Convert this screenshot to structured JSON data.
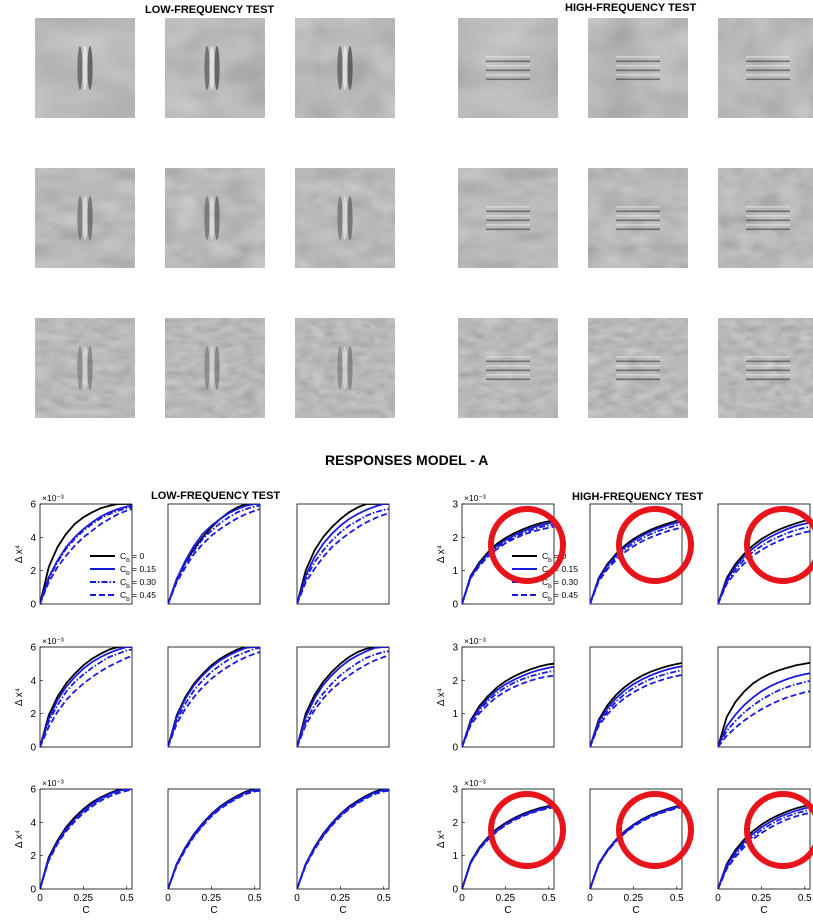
{
  "figure": {
    "stimuli": {
      "low_title": "LOW-FREQUENCY TEST",
      "high_title": "HIGH-FREQUENCY TEST",
      "rows": 3,
      "cols_per_group": 3
    },
    "responses_title": "RESPONSES  MODEL - A",
    "low_title": "LOW-FREQUENCY TEST",
    "high_title": "HIGH-FREQUENCY TEST",
    "circle_color": "#e8141c",
    "line_colors": {
      "Cb0": "#000000",
      "other": "#1a1adc"
    }
  },
  "chart_data": [
    {
      "type": "line",
      "group": "low-frequency",
      "grid": "3x3 panels",
      "xlabel": "C",
      "ylabel": "Δ x⁴",
      "exponent_label": "×10⁻³",
      "xticks": [
        "0",
        "0.25",
        "0.5"
      ],
      "yticks": [
        "0",
        "2",
        "4",
        "6"
      ],
      "xlim": [
        0,
        0.53
      ],
      "ylim": [
        0,
        6
      ],
      "legend": [
        "C_b = 0",
        "C_b = 0.15",
        "C_b = 0.30",
        "C_b = 0.45"
      ],
      "legend_display": [
        {
          "main": "C",
          "sub": "b",
          "rest": " = 0"
        },
        {
          "main": "C",
          "sub": "b",
          "rest": " = 0.15"
        },
        {
          "main": "C",
          "sub": "b",
          "rest": " = 0.30"
        },
        {
          "main": "C",
          "sub": "b",
          "rest": " = 0.45"
        }
      ],
      "x": [
        0,
        0.05,
        0.1,
        0.15,
        0.2,
        0.25,
        0.3,
        0.35,
        0.4,
        0.45,
        0.5,
        0.53
      ],
      "panels": [
        [
          [
            0,
            2.2,
            3.4,
            4.2,
            4.8,
            5.2,
            5.5,
            5.75,
            5.9,
            6.0,
            6.0,
            6.0
          ],
          [
            0,
            1.6,
            2.6,
            3.4,
            4.0,
            4.5,
            4.9,
            5.25,
            5.5,
            5.7,
            5.85,
            5.9
          ],
          [
            0,
            1.5,
            2.5,
            3.3,
            3.9,
            4.4,
            4.8,
            5.15,
            5.4,
            5.6,
            5.75,
            5.8
          ],
          [
            0,
            1.3,
            2.2,
            2.9,
            3.5,
            4.0,
            4.4,
            4.8,
            5.1,
            5.4,
            5.6,
            5.7
          ]
        ],
        [
          [
            0,
            1.5,
            2.5,
            3.3,
            4.0,
            4.6,
            5.1,
            5.5,
            5.8,
            6.0,
            6.0,
            6.0
          ],
          [
            0,
            1.5,
            2.6,
            3.5,
            4.2,
            4.7,
            5.1,
            5.45,
            5.7,
            5.9,
            6.0,
            6.0
          ],
          [
            0,
            1.4,
            2.4,
            3.2,
            3.9,
            4.4,
            4.85,
            5.2,
            5.5,
            5.7,
            5.85,
            5.9
          ],
          [
            0,
            1.3,
            2.2,
            3.0,
            3.6,
            4.1,
            4.5,
            4.85,
            5.15,
            5.4,
            5.6,
            5.7
          ]
        ],
        [
          [
            0,
            2.0,
            3.2,
            4.0,
            4.6,
            5.1,
            5.5,
            5.8,
            6.0,
            6.0,
            6.0,
            6.0
          ],
          [
            0,
            1.7,
            2.8,
            3.6,
            4.2,
            4.7,
            5.1,
            5.4,
            5.65,
            5.85,
            6.0,
            6.0
          ],
          [
            0,
            1.5,
            2.5,
            3.2,
            3.8,
            4.3,
            4.7,
            5.0,
            5.3,
            5.5,
            5.65,
            5.7
          ],
          [
            0,
            1.3,
            2.1,
            2.8,
            3.4,
            3.85,
            4.25,
            4.6,
            4.9,
            5.15,
            5.35,
            5.45
          ]
        ],
        [
          [
            0,
            1.9,
            3.0,
            3.8,
            4.4,
            4.9,
            5.3,
            5.6,
            5.85,
            6.0,
            6.0,
            6.0
          ],
          [
            0,
            1.7,
            2.8,
            3.6,
            4.2,
            4.7,
            5.1,
            5.4,
            5.65,
            5.85,
            6.0,
            6.0
          ],
          [
            0,
            1.5,
            2.5,
            3.3,
            3.9,
            4.35,
            4.75,
            5.1,
            5.4,
            5.6,
            5.8,
            5.85
          ],
          [
            0,
            1.2,
            2.1,
            2.8,
            3.35,
            3.8,
            4.2,
            4.55,
            4.85,
            5.1,
            5.35,
            5.45
          ]
        ],
        [
          [
            0,
            1.9,
            3.0,
            3.8,
            4.4,
            4.9,
            5.3,
            5.6,
            5.85,
            6.0,
            6.0,
            6.0
          ],
          [
            0,
            1.8,
            2.9,
            3.7,
            4.3,
            4.8,
            5.2,
            5.5,
            5.75,
            5.95,
            6.0,
            6.0
          ],
          [
            0,
            1.6,
            2.6,
            3.4,
            4.0,
            4.5,
            4.9,
            5.25,
            5.5,
            5.7,
            5.9,
            5.95
          ],
          [
            0,
            1.4,
            2.3,
            3.0,
            3.6,
            4.1,
            4.5,
            4.85,
            5.15,
            5.4,
            5.6,
            5.7
          ]
        ],
        [
          [
            0,
            2.0,
            3.1,
            3.9,
            4.5,
            5.0,
            5.4,
            5.7,
            5.9,
            6.0,
            6.0,
            6.0
          ],
          [
            0,
            1.8,
            2.9,
            3.7,
            4.3,
            4.8,
            5.2,
            5.5,
            5.75,
            5.95,
            6.0,
            6.0
          ],
          [
            0,
            1.5,
            2.5,
            3.2,
            3.8,
            4.3,
            4.7,
            5.05,
            5.35,
            5.55,
            5.7,
            5.75
          ],
          [
            0,
            1.3,
            2.2,
            2.9,
            3.45,
            3.9,
            4.3,
            4.65,
            4.95,
            5.2,
            5.4,
            5.5
          ]
        ],
        [
          [
            0,
            1.9,
            2.9,
            3.7,
            4.3,
            4.8,
            5.2,
            5.5,
            5.75,
            5.95,
            6.0,
            6.0
          ],
          [
            0,
            1.8,
            2.8,
            3.6,
            4.2,
            4.7,
            5.1,
            5.45,
            5.7,
            5.9,
            6.0,
            6.0
          ],
          [
            0,
            1.8,
            2.8,
            3.55,
            4.15,
            4.65,
            5.05,
            5.4,
            5.65,
            5.85,
            6.0,
            6.0
          ],
          [
            0,
            1.7,
            2.7,
            3.45,
            4.05,
            4.55,
            4.95,
            5.3,
            5.55,
            5.75,
            5.9,
            5.95
          ]
        ],
        [
          [
            0,
            1.5,
            2.5,
            3.3,
            3.95,
            4.5,
            4.95,
            5.3,
            5.6,
            5.85,
            6.0,
            6.0
          ],
          [
            0,
            1.5,
            2.45,
            3.25,
            3.9,
            4.45,
            4.9,
            5.25,
            5.55,
            5.8,
            5.95,
            6.0
          ],
          [
            0,
            1.45,
            2.4,
            3.2,
            3.85,
            4.4,
            4.85,
            5.2,
            5.5,
            5.75,
            5.9,
            5.95
          ],
          [
            0,
            1.4,
            2.35,
            3.15,
            3.8,
            4.35,
            4.8,
            5.15,
            5.45,
            5.7,
            5.85,
            5.9
          ]
        ],
        [
          [
            0,
            1.5,
            2.5,
            3.3,
            3.95,
            4.5,
            4.95,
            5.3,
            5.6,
            5.85,
            6.0,
            6.0
          ],
          [
            0,
            1.5,
            2.45,
            3.25,
            3.9,
            4.45,
            4.9,
            5.25,
            5.55,
            5.8,
            5.95,
            6.0
          ],
          [
            0,
            1.45,
            2.4,
            3.2,
            3.85,
            4.4,
            4.85,
            5.2,
            5.5,
            5.75,
            5.9,
            5.95
          ],
          [
            0,
            1.4,
            2.35,
            3.15,
            3.8,
            4.35,
            4.8,
            5.15,
            5.45,
            5.7,
            5.85,
            5.9
          ]
        ]
      ]
    },
    {
      "type": "line",
      "group": "high-frequency",
      "grid": "3x3 panels",
      "xlabel": "C",
      "ylabel": "Δ x⁴",
      "exponent_label": "×10⁻³",
      "xticks": [
        "0",
        "0.25",
        "0.5"
      ],
      "yticks": [
        "0",
        "1",
        "2",
        "3"
      ],
      "xlim": [
        0,
        0.53
      ],
      "ylim": [
        0,
        3
      ],
      "legend": [
        "C_b = 0",
        "C_b = 0.15",
        "C_b = 0.30",
        "C_b = 0.45"
      ],
      "legend_display": [
        {
          "main": "C",
          "sub": "b",
          "rest": " = 0"
        },
        {
          "main": "C",
          "sub": "b",
          "rest": " = 0.15"
        },
        {
          "main": "C",
          "sub": "b",
          "rest": " = 0.30"
        },
        {
          "main": "C",
          "sub": "b",
          "rest": " = 0.45"
        }
      ],
      "circled_panels": [
        0,
        1,
        2,
        6,
        7,
        8
      ],
      "x": [
        0,
        0.05,
        0.1,
        0.15,
        0.2,
        0.25,
        0.3,
        0.35,
        0.4,
        0.45,
        0.5,
        0.53
      ],
      "panels": [
        [
          [
            0,
            0.85,
            1.25,
            1.55,
            1.8,
            1.98,
            2.12,
            2.24,
            2.34,
            2.42,
            2.48,
            2.5
          ],
          [
            0,
            0.82,
            1.2,
            1.5,
            1.74,
            1.92,
            2.06,
            2.18,
            2.28,
            2.36,
            2.42,
            2.45
          ],
          [
            0,
            0.8,
            1.17,
            1.46,
            1.69,
            1.87,
            2.01,
            2.12,
            2.22,
            2.3,
            2.36,
            2.38
          ],
          [
            0,
            0.78,
            1.14,
            1.42,
            1.64,
            1.82,
            1.96,
            2.07,
            2.16,
            2.23,
            2.29,
            2.32
          ]
        ],
        [
          [
            0,
            0.78,
            1.2,
            1.5,
            1.75,
            1.95,
            2.1,
            2.23,
            2.33,
            2.42,
            2.5,
            2.53
          ],
          [
            0,
            0.75,
            1.15,
            1.45,
            1.7,
            1.9,
            2.05,
            2.18,
            2.28,
            2.37,
            2.44,
            2.47
          ],
          [
            0,
            0.72,
            1.1,
            1.39,
            1.63,
            1.82,
            1.97,
            2.1,
            2.2,
            2.29,
            2.36,
            2.39
          ],
          [
            0,
            0.68,
            1.04,
            1.32,
            1.55,
            1.73,
            1.88,
            2.0,
            2.1,
            2.19,
            2.26,
            2.29
          ]
        ],
        [
          [
            0,
            0.78,
            1.2,
            1.5,
            1.75,
            1.95,
            2.1,
            2.23,
            2.33,
            2.42,
            2.5,
            2.53
          ],
          [
            0,
            0.72,
            1.12,
            1.42,
            1.66,
            1.86,
            2.01,
            2.14,
            2.25,
            2.34,
            2.41,
            2.44
          ],
          [
            0,
            0.66,
            1.03,
            1.32,
            1.56,
            1.74,
            1.9,
            2.02,
            2.13,
            2.22,
            2.29,
            2.32
          ],
          [
            0,
            0.6,
            0.94,
            1.21,
            1.44,
            1.62,
            1.77,
            1.89,
            2.0,
            2.08,
            2.15,
            2.18
          ]
        ],
        [
          [
            0,
            0.8,
            1.23,
            1.53,
            1.78,
            1.97,
            2.12,
            2.24,
            2.34,
            2.42,
            2.48,
            2.5
          ],
          [
            0,
            0.76,
            1.16,
            1.46,
            1.7,
            1.88,
            2.02,
            2.14,
            2.24,
            2.32,
            2.38,
            2.41
          ],
          [
            0,
            0.72,
            1.1,
            1.38,
            1.61,
            1.79,
            1.93,
            2.04,
            2.13,
            2.2,
            2.26,
            2.28
          ],
          [
            0,
            0.66,
            1.01,
            1.28,
            1.5,
            1.67,
            1.8,
            1.91,
            2.0,
            2.07,
            2.12,
            2.14
          ]
        ],
        [
          [
            0,
            0.82,
            1.25,
            1.56,
            1.8,
            1.99,
            2.14,
            2.26,
            2.35,
            2.43,
            2.49,
            2.52
          ],
          [
            0,
            0.76,
            1.16,
            1.46,
            1.7,
            1.88,
            2.03,
            2.15,
            2.25,
            2.33,
            2.39,
            2.42
          ],
          [
            0,
            0.7,
            1.07,
            1.36,
            1.59,
            1.77,
            1.92,
            2.04,
            2.13,
            2.21,
            2.27,
            2.3
          ],
          [
            0,
            0.64,
            0.98,
            1.25,
            1.47,
            1.64,
            1.78,
            1.9,
            1.99,
            2.07,
            2.13,
            2.16
          ]
        ],
        [
          [
            0,
            0.9,
            1.35,
            1.66,
            1.9,
            2.07,
            2.2,
            2.3,
            2.38,
            2.45,
            2.5,
            2.53
          ],
          [
            0,
            0.62,
            0.97,
            1.25,
            1.48,
            1.67,
            1.82,
            1.94,
            2.04,
            2.12,
            2.18,
            2.21
          ],
          [
            0,
            0.48,
            0.78,
            1.03,
            1.24,
            1.42,
            1.57,
            1.7,
            1.8,
            1.88,
            1.95,
            1.98
          ],
          [
            0,
            0.34,
            0.58,
            0.79,
            0.97,
            1.13,
            1.27,
            1.39,
            1.49,
            1.57,
            1.64,
            1.67
          ]
        ],
        [
          [
            0,
            0.82,
            1.25,
            1.55,
            1.8,
            1.98,
            2.13,
            2.25,
            2.35,
            2.43,
            2.49,
            2.51
          ],
          [
            0,
            0.8,
            1.22,
            1.52,
            1.76,
            1.95,
            2.1,
            2.22,
            2.32,
            2.4,
            2.46,
            2.49
          ],
          [
            0,
            0.79,
            1.2,
            1.5,
            1.74,
            1.93,
            2.08,
            2.2,
            2.3,
            2.38,
            2.44,
            2.47
          ],
          [
            0,
            0.78,
            1.19,
            1.48,
            1.72,
            1.91,
            2.06,
            2.18,
            2.28,
            2.36,
            2.42,
            2.45
          ]
        ],
        [
          [
            0,
            0.76,
            1.17,
            1.48,
            1.73,
            1.93,
            2.09,
            2.22,
            2.32,
            2.41,
            2.48,
            2.51
          ],
          [
            0,
            0.75,
            1.15,
            1.46,
            1.71,
            1.91,
            2.07,
            2.2,
            2.3,
            2.39,
            2.46,
            2.49
          ],
          [
            0,
            0.74,
            1.14,
            1.44,
            1.69,
            1.89,
            2.05,
            2.18,
            2.28,
            2.37,
            2.44,
            2.47
          ],
          [
            0,
            0.73,
            1.13,
            1.43,
            1.67,
            1.87,
            2.03,
            2.16,
            2.26,
            2.35,
            2.42,
            2.45
          ]
        ],
        [
          [
            0,
            0.75,
            1.17,
            1.48,
            1.73,
            1.93,
            2.09,
            2.22,
            2.33,
            2.42,
            2.49,
            2.52
          ],
          [
            0,
            0.7,
            1.1,
            1.4,
            1.65,
            1.85,
            2.01,
            2.15,
            2.26,
            2.35,
            2.42,
            2.45
          ],
          [
            0,
            0.65,
            1.03,
            1.33,
            1.57,
            1.77,
            1.93,
            2.07,
            2.18,
            2.27,
            2.34,
            2.37
          ],
          [
            0,
            0.6,
            0.96,
            1.25,
            1.49,
            1.68,
            1.84,
            1.98,
            2.09,
            2.18,
            2.25,
            2.28
          ]
        ]
      ]
    }
  ]
}
